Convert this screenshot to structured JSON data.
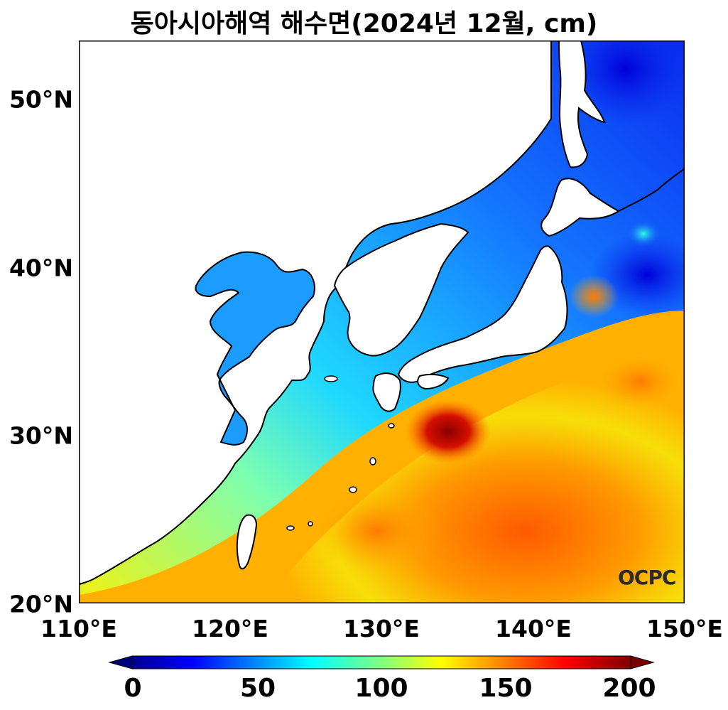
{
  "title": "동아시아해역 해수면(2024년 12월, cm)",
  "logo_text": "OCPC",
  "lat_labels": [
    "50°N",
    "40°N",
    "30°N",
    "20°N"
  ],
  "lon_labels": [
    "110°E",
    "120°E",
    "130°E",
    "140°E",
    "150°E"
  ],
  "colorbar": {
    "labels": [
      "0",
      "50",
      "100",
      "150",
      "200"
    ],
    "range": [
      0,
      200
    ],
    "extend": "both",
    "colormap": "jet"
  },
  "map": {
    "lon_range": [
      110,
      150
    ],
    "lat_range": [
      20,
      53.5
    ],
    "field": "sea surface height (cm)",
    "land_color": "#ffffff",
    "coastline_color": "#000000"
  }
}
